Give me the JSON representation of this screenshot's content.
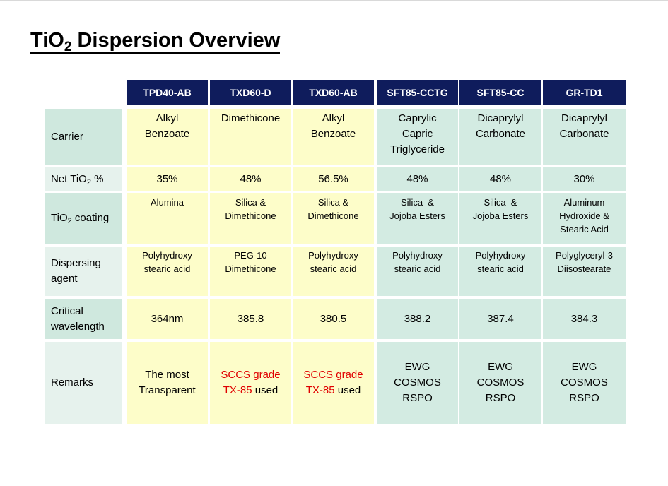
{
  "title": {
    "main": "TiO",
    "sub": "2",
    "rest": " Dispersion Overview"
  },
  "columns": [
    "TPD40-AB",
    "TXD60-D",
    "TXD60-AB",
    "SFT85-CCTG",
    "SFT85-CC",
    "GR-TD1"
  ],
  "row_labels": {
    "carrier": "Carrier",
    "net_a": "Net TiO",
    "net_sub": "2",
    "net_b": " %",
    "coat_a": "TiO",
    "coat_sub": "2",
    "coat_b": " coating",
    "dispersing_1": "Dispersing",
    "dispersing_2": "agent",
    "critical_1": "Critical",
    "critical_2": "wavelength",
    "remarks": "Remarks"
  },
  "carrier": [
    [
      "Alkyl",
      "Benzoate"
    ],
    [
      "Dimethicone"
    ],
    [
      "Alkyl",
      "Benzoate"
    ],
    [
      "Caprylic",
      "Capric",
      "Triglyceride"
    ],
    [
      "Dicaprylyl",
      "Carbonate"
    ],
    [
      "Dicaprylyl",
      "Carbonate"
    ]
  ],
  "net_tio2": [
    "35%",
    "48%",
    "56.5%",
    "48%",
    "48%",
    "30%"
  ],
  "coating": [
    [
      "Alumina"
    ],
    [
      "Silica &",
      "Dimethicone"
    ],
    [
      "Silica &",
      "Dimethicone"
    ],
    [
      "Silica  &",
      "Jojoba Esters"
    ],
    [
      "Silica  &",
      "Jojoba Esters"
    ],
    [
      "Aluminum",
      "Hydroxide &",
      "Stearic Acid"
    ]
  ],
  "dispersing": [
    [
      "Polyhydroxy",
      "stearic acid"
    ],
    [
      "PEG-10",
      "Dimethicone"
    ],
    [
      "Polyhydroxy",
      "stearic acid"
    ],
    [
      "Polyhydroxy",
      "stearic acid"
    ],
    [
      "Polyhydroxy",
      "stearic acid"
    ],
    [
      "Polyglyceryl-3",
      "Diisostearate"
    ]
  ],
  "critical": [
    "364nm",
    "385.8",
    "380.5",
    "388.2",
    "387.4",
    "384.3"
  ],
  "remarks": {
    "c1": [
      "The most",
      "Transparent"
    ],
    "c2": {
      "red1": "SCCS grade",
      "red2": "TX-85",
      "plain2": " used"
    },
    "c3": {
      "red1": "SCCS grade",
      "red2": "TX-85",
      "plain2": " used"
    },
    "c4": [
      "EWG",
      "COSMOS",
      "RSPO"
    ],
    "c5": [
      "EWG",
      "COSMOS",
      "RSPO"
    ],
    "c6": [
      "EWG",
      "COSMOS",
      "RSPO"
    ]
  },
  "colors": {
    "header": "#0f1c5c",
    "label": "#cfe8de",
    "yellow": "#fdfdc9",
    "green": "#d3ebe2",
    "remark_red": "#e00000"
  }
}
